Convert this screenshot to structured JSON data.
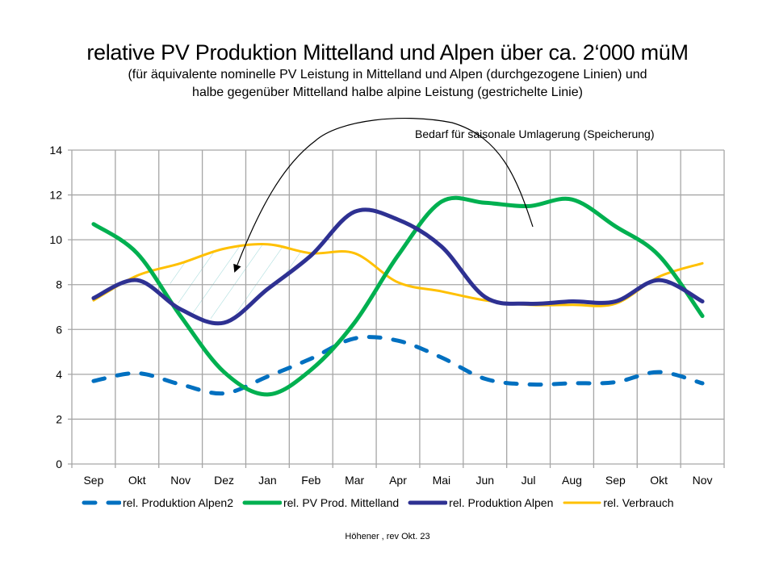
{
  "chart_data": {
    "type": "line",
    "title": "relative PV Produktion Mittelland und Alpen über ca. 2‘000 müM",
    "subtitle_line1": "(für äquivalente nominelle PV Leistung in Mittelland und Alpen (durchgezogene Linien)  und",
    "subtitle_line2": "halbe  gegenüber Mittelland halbe alpine Leistung (gestrichelte Linie)",
    "annotation": "Bedarf für saisonale Umlagerung (Speicherung)",
    "footer": "Höhener , rev  Okt. 23",
    "xlabel": "",
    "ylabel": "",
    "ylim": [
      0,
      14
    ],
    "yticks": [
      "0",
      "2",
      "4",
      "6",
      "8",
      "10",
      "12",
      "14"
    ],
    "grid": true,
    "legend_position": "bottom",
    "categories": [
      "Sep",
      "Okt",
      "Nov",
      "Dez",
      "Jan",
      "Feb",
      "Mar",
      "Apr",
      "Mai",
      "Jun",
      "Jul",
      "Aug",
      "Sep",
      "Okt",
      "Nov"
    ],
    "series": [
      {
        "name": "rel. Produktion Alpen2",
        "color": "#0070C0",
        "style": "dashed",
        "values": [
          3.7,
          4.05,
          3.55,
          3.15,
          3.9,
          4.7,
          5.6,
          5.5,
          4.75,
          3.8,
          3.55,
          3.6,
          3.65,
          4.1,
          3.6
        ]
      },
      {
        "name": "rel. PV Prod. Mittelland",
        "color": "#00B050",
        "style": "solid",
        "values": [
          10.7,
          9.4,
          6.6,
          4.1,
          3.1,
          4.2,
          6.3,
          9.3,
          11.7,
          11.65,
          11.5,
          11.8,
          10.6,
          9.3,
          6.6
        ]
      },
      {
        "name": "rel. Produktion Alpen",
        "color": "#2E3192",
        "style": "solid",
        "values": [
          7.4,
          8.2,
          6.9,
          6.3,
          7.8,
          9.3,
          11.25,
          10.9,
          9.7,
          7.45,
          7.15,
          7.25,
          7.25,
          8.2,
          7.25
        ]
      },
      {
        "name": "rel. Verbrauch",
        "color": "#FFC000",
        "style": "solid",
        "values": [
          7.3,
          8.4,
          8.95,
          9.6,
          9.8,
          9.4,
          9.4,
          8.1,
          7.7,
          7.3,
          7.1,
          7.1,
          7.15,
          8.35,
          8.95
        ]
      }
    ]
  }
}
